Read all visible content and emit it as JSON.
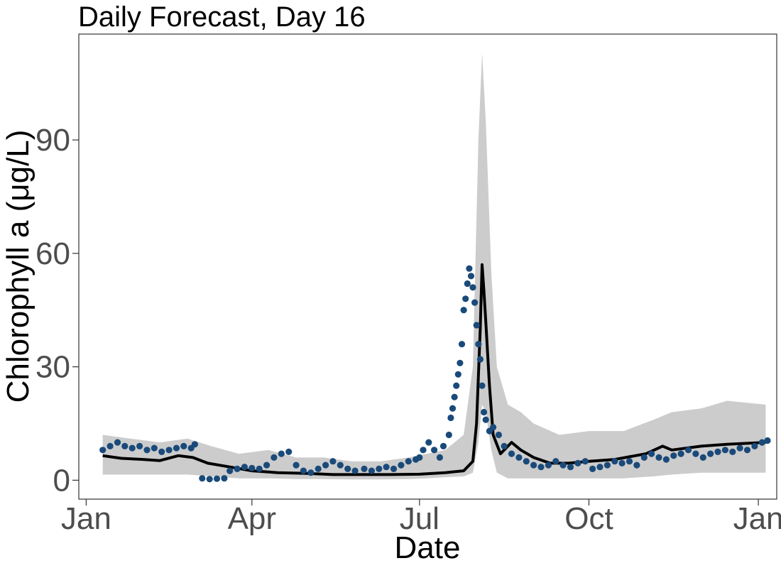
{
  "chart_data": {
    "type": "line",
    "title": "Daily Forecast, Day 16",
    "xlabel": "Date",
    "ylabel": "Chlorophyll a (μg/L)",
    "x_axis": {
      "tick_labels": [
        "Jan",
        "Apr",
        "Jul",
        "Oct",
        "Jan"
      ],
      "tick_dates": [
        "2019-01-01",
        "2019-04-01",
        "2019-07-01",
        "2019-10-01",
        "2020-01-01"
      ],
      "range": [
        "2018-12-28",
        "2020-01-11"
      ]
    },
    "y_axis": {
      "ticks": [
        0,
        30,
        60,
        90
      ],
      "range": [
        -5,
        118
      ]
    },
    "grid": false,
    "legend": "none",
    "colors": {
      "forecast_line": "#000000",
      "band": "#cccccc",
      "observed": "#1a4a7a",
      "axis": "#333333",
      "tick_label": "#4d4d4d"
    },
    "series": [
      {
        "kind": "band",
        "points": [
          {
            "date": "2019-01-10",
            "lo": 1.5,
            "hi": 12
          },
          {
            "date": "2019-01-25",
            "lo": 1.5,
            "hi": 11
          },
          {
            "date": "2019-02-10",
            "lo": 1.5,
            "hi": 10
          },
          {
            "date": "2019-02-25",
            "lo": 1.5,
            "hi": 11
          },
          {
            "date": "2019-03-10",
            "lo": 1.0,
            "hi": 9
          },
          {
            "date": "2019-03-25",
            "lo": 0.5,
            "hi": 7
          },
          {
            "date": "2019-04-10",
            "lo": 0.5,
            "hi": 8
          },
          {
            "date": "2019-04-25",
            "lo": 0.3,
            "hi": 6
          },
          {
            "date": "2019-05-10",
            "lo": 0.3,
            "hi": 6
          },
          {
            "date": "2019-05-25",
            "lo": 0.2,
            "hi": 5
          },
          {
            "date": "2019-06-10",
            "lo": 0.2,
            "hi": 5
          },
          {
            "date": "2019-06-25",
            "lo": 0.3,
            "hi": 6
          },
          {
            "date": "2019-07-05",
            "lo": 0.5,
            "hi": 7
          },
          {
            "date": "2019-07-15",
            "lo": 0.8,
            "hi": 8
          },
          {
            "date": "2019-07-25",
            "lo": 1.0,
            "hi": 12
          },
          {
            "date": "2019-07-30",
            "lo": 2.0,
            "hi": 30
          },
          {
            "date": "2019-08-02",
            "lo": 10,
            "hi": 90
          },
          {
            "date": "2019-08-04",
            "lo": 20,
            "hi": 113
          },
          {
            "date": "2019-08-06",
            "lo": 18,
            "hi": 95
          },
          {
            "date": "2019-08-09",
            "lo": 8,
            "hi": 55
          },
          {
            "date": "2019-08-12",
            "lo": 2,
            "hi": 30
          },
          {
            "date": "2019-08-18",
            "lo": 0.5,
            "hi": 20
          },
          {
            "date": "2019-08-25",
            "lo": 0.5,
            "hi": 18
          },
          {
            "date": "2019-09-01",
            "lo": 0.5,
            "hi": 15
          },
          {
            "date": "2019-09-15",
            "lo": 0.5,
            "hi": 12
          },
          {
            "date": "2019-10-01",
            "lo": 0.5,
            "hi": 13
          },
          {
            "date": "2019-10-20",
            "lo": 0.5,
            "hi": 13
          },
          {
            "date": "2019-11-05",
            "lo": 1.0,
            "hi": 16
          },
          {
            "date": "2019-11-15",
            "lo": 1.5,
            "hi": 18
          },
          {
            "date": "2019-12-01",
            "lo": 2.0,
            "hi": 19
          },
          {
            "date": "2019-12-15",
            "lo": 2.0,
            "hi": 21
          },
          {
            "date": "2020-01-05",
            "lo": 2.0,
            "hi": 20
          }
        ]
      },
      {
        "kind": "line",
        "points": [
          [
            "2019-01-10",
            6.5
          ],
          [
            "2019-01-20",
            5.8
          ],
          [
            "2019-02-01",
            5.5
          ],
          [
            "2019-02-10",
            5.2
          ],
          [
            "2019-02-20",
            6.5
          ],
          [
            "2019-02-28",
            6.0
          ],
          [
            "2019-03-08",
            4.5
          ],
          [
            "2019-03-20",
            3.5
          ],
          [
            "2019-04-01",
            2.5
          ],
          [
            "2019-04-15",
            2.0
          ],
          [
            "2019-05-01",
            1.8
          ],
          [
            "2019-05-15",
            1.5
          ],
          [
            "2019-06-01",
            1.5
          ],
          [
            "2019-06-15",
            1.5
          ],
          [
            "2019-07-01",
            1.6
          ],
          [
            "2019-07-15",
            2.0
          ],
          [
            "2019-07-25",
            2.5
          ],
          [
            "2019-07-30",
            5
          ],
          [
            "2019-08-01",
            15
          ],
          [
            "2019-08-03",
            40
          ],
          [
            "2019-08-04",
            57
          ],
          [
            "2019-08-05",
            50
          ],
          [
            "2019-08-06",
            42
          ],
          [
            "2019-08-08",
            25
          ],
          [
            "2019-08-10",
            12
          ],
          [
            "2019-08-14",
            7
          ],
          [
            "2019-08-20",
            10
          ],
          [
            "2019-08-25",
            8
          ],
          [
            "2019-09-01",
            6
          ],
          [
            "2019-09-10",
            4.5
          ],
          [
            "2019-09-20",
            4.5
          ],
          [
            "2019-10-01",
            5
          ],
          [
            "2019-10-15",
            5.5
          ],
          [
            "2019-11-01",
            7
          ],
          [
            "2019-11-10",
            9
          ],
          [
            "2019-11-15",
            8
          ],
          [
            "2019-12-01",
            9
          ],
          [
            "2019-12-15",
            9.5
          ],
          [
            "2020-01-05",
            10
          ]
        ]
      },
      {
        "kind": "observed",
        "points": [
          [
            "2019-01-10",
            8
          ],
          [
            "2019-01-14",
            9
          ],
          [
            "2019-01-18",
            10
          ],
          [
            "2019-01-22",
            9
          ],
          [
            "2019-01-26",
            8.5
          ],
          [
            "2019-01-30",
            9
          ],
          [
            "2019-02-03",
            8
          ],
          [
            "2019-02-07",
            8.5
          ],
          [
            "2019-02-11",
            7.5
          ],
          [
            "2019-02-15",
            8
          ],
          [
            "2019-02-19",
            8.5
          ],
          [
            "2019-02-23",
            9
          ],
          [
            "2019-02-27",
            8.5
          ],
          [
            "2019-03-01",
            9.5
          ],
          [
            "2019-03-05",
            0.5
          ],
          [
            "2019-03-09",
            0.3
          ],
          [
            "2019-03-13",
            0.4
          ],
          [
            "2019-03-17",
            0.5
          ],
          [
            "2019-03-20",
            2.5
          ],
          [
            "2019-03-24",
            3
          ],
          [
            "2019-03-28",
            3.5
          ],
          [
            "2019-04-01",
            3.2
          ],
          [
            "2019-04-05",
            3
          ],
          [
            "2019-04-09",
            4
          ],
          [
            "2019-04-13",
            6
          ],
          [
            "2019-04-17",
            7
          ],
          [
            "2019-04-21",
            7.5
          ],
          [
            "2019-04-25",
            4
          ],
          [
            "2019-04-29",
            2.5
          ],
          [
            "2019-05-03",
            2
          ],
          [
            "2019-05-07",
            3
          ],
          [
            "2019-05-11",
            4
          ],
          [
            "2019-05-15",
            5
          ],
          [
            "2019-05-19",
            4
          ],
          [
            "2019-05-23",
            3
          ],
          [
            "2019-05-27",
            2.5
          ],
          [
            "2019-06-01",
            3
          ],
          [
            "2019-06-05",
            2.5
          ],
          [
            "2019-06-09",
            3
          ],
          [
            "2019-06-13",
            3.5
          ],
          [
            "2019-06-17",
            3
          ],
          [
            "2019-06-21",
            4
          ],
          [
            "2019-06-25",
            5
          ],
          [
            "2019-06-29",
            5.5
          ],
          [
            "2019-07-01",
            6
          ],
          [
            "2019-07-03",
            8
          ],
          [
            "2019-07-06",
            10
          ],
          [
            "2019-07-09",
            8
          ],
          [
            "2019-07-12",
            6
          ],
          [
            "2019-07-14",
            9
          ],
          [
            "2019-07-17",
            12
          ],
          [
            "2019-07-18",
            16.5
          ],
          [
            "2019-07-19",
            19
          ],
          [
            "2019-07-20",
            22
          ],
          [
            "2019-07-21",
            25
          ],
          [
            "2019-07-22",
            28
          ],
          [
            "2019-07-23",
            31
          ],
          [
            "2019-07-24",
            36
          ],
          [
            "2019-07-25",
            45
          ],
          [
            "2019-07-26",
            48
          ],
          [
            "2019-07-27",
            52
          ],
          [
            "2019-07-28",
            56
          ],
          [
            "2019-07-29",
            54
          ],
          [
            "2019-07-30",
            51
          ],
          [
            "2019-07-31",
            47
          ],
          [
            "2019-08-01",
            41
          ],
          [
            "2019-08-02",
            36
          ],
          [
            "2019-08-03",
            32
          ],
          [
            "2019-08-04",
            25
          ],
          [
            "2019-08-05",
            18
          ],
          [
            "2019-08-06",
            16
          ],
          [
            "2019-08-08",
            13
          ],
          [
            "2019-08-10",
            14
          ],
          [
            "2019-08-13",
            12
          ],
          [
            "2019-08-16",
            9
          ],
          [
            "2019-08-20",
            7
          ],
          [
            "2019-08-24",
            6
          ],
          [
            "2019-08-28",
            5
          ],
          [
            "2019-09-01",
            4
          ],
          [
            "2019-09-05",
            3.5
          ],
          [
            "2019-09-09",
            4
          ],
          [
            "2019-09-13",
            5
          ],
          [
            "2019-09-17",
            4
          ],
          [
            "2019-09-21",
            3.5
          ],
          [
            "2019-09-25",
            4.5
          ],
          [
            "2019-09-29",
            5
          ],
          [
            "2019-10-03",
            3
          ],
          [
            "2019-10-07",
            3.5
          ],
          [
            "2019-10-11",
            4
          ],
          [
            "2019-10-15",
            5
          ],
          [
            "2019-10-19",
            4.5
          ],
          [
            "2019-10-23",
            5
          ],
          [
            "2019-10-27",
            4
          ],
          [
            "2019-10-31",
            6
          ],
          [
            "2019-11-04",
            7
          ],
          [
            "2019-11-08",
            6
          ],
          [
            "2019-11-12",
            5.5
          ],
          [
            "2019-11-16",
            6.5
          ],
          [
            "2019-11-20",
            7
          ],
          [
            "2019-11-24",
            8
          ],
          [
            "2019-11-28",
            7
          ],
          [
            "2019-12-02",
            6
          ],
          [
            "2019-12-06",
            7
          ],
          [
            "2019-12-10",
            7.5
          ],
          [
            "2019-12-14",
            8
          ],
          [
            "2019-12-18",
            7.5
          ],
          [
            "2019-12-22",
            8.5
          ],
          [
            "2019-12-26",
            8
          ],
          [
            "2019-12-30",
            9
          ],
          [
            "2020-01-03",
            10
          ],
          [
            "2020-01-06",
            10.5
          ]
        ]
      }
    ]
  }
}
